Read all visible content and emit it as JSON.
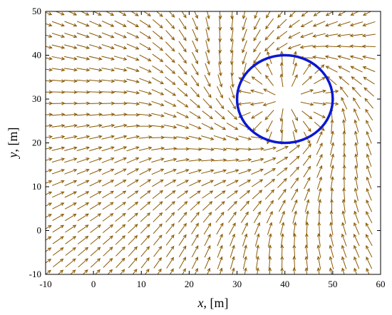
{
  "chart_data": {
    "type": "quiver",
    "xlabel_var": "x",
    "xlabel_unit": ", [m]",
    "ylabel_var": "y",
    "ylabel_unit": ", [m]",
    "xlim": [
      -10,
      60
    ],
    "ylim": [
      -10,
      50
    ],
    "xticks": [
      -10,
      0,
      10,
      20,
      30,
      40,
      50,
      60
    ],
    "yticks": [
      -10,
      0,
      10,
      20,
      30,
      40,
      50
    ],
    "grid": false,
    "field_grid": {
      "x_start": -10,
      "x_end": 60,
      "y_start": -10,
      "y_end": 50,
      "step": 2.6
    },
    "obstacle_circle": {
      "center": [
        40,
        30
      ],
      "radius": 10
    },
    "goal_point": [
      40,
      30
    ],
    "colors": {
      "arrow": "#8B5A00",
      "arrow_faint": "#b9c6e6",
      "circle": "#0b18d0",
      "axes": "#000000"
    }
  }
}
